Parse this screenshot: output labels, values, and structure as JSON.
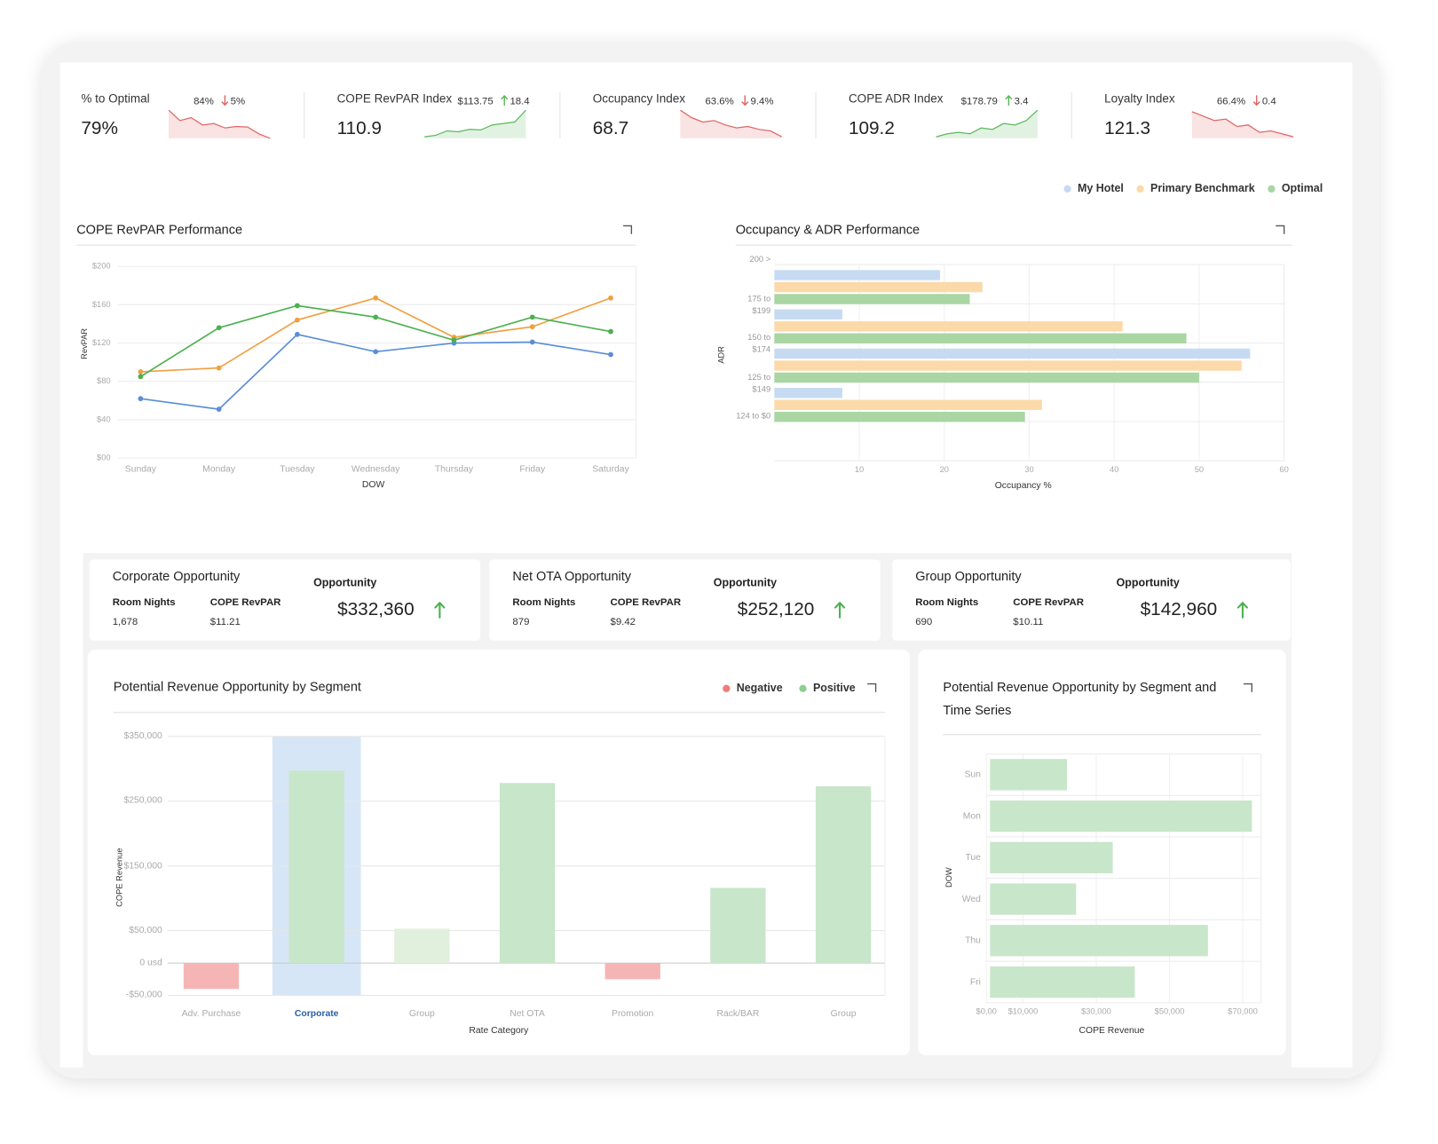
{
  "sparkline_lim": [
    0,
    100
  ],
  "kpis": [
    {
      "label": "% to Optimal",
      "value": "79%",
      "benchmark": "84%",
      "change": "5%",
      "trend": "down",
      "color": "#e06666",
      "sparkline": [
        95,
        60,
        70,
        45,
        50,
        35,
        40,
        38,
        15,
        0
      ]
    },
    {
      "label": "COPE RevPAR Index",
      "value": "110.9",
      "benchmark": "$113.75",
      "change": "18.4",
      "trend": "up",
      "color": "#5cb85c",
      "sparkline": [
        5,
        10,
        25,
        22,
        30,
        28,
        45,
        50,
        55,
        95
      ]
    },
    {
      "label": "Occupancy Index",
      "value": "68.7",
      "benchmark": "63.6%",
      "change": "9.4%",
      "trend": "down",
      "color": "#e06666",
      "sparkline": [
        95,
        70,
        55,
        60,
        45,
        35,
        40,
        30,
        25,
        5
      ]
    },
    {
      "label": "COPE ADR Index",
      "value": "109.2",
      "benchmark": "$178.79",
      "change": "3.4",
      "trend": "up",
      "color": "#5cb85c",
      "sparkline": [
        5,
        15,
        20,
        15,
        35,
        30,
        50,
        45,
        60,
        95
      ]
    },
    {
      "label": "Loyalty Index",
      "value": "121.3",
      "benchmark": "66.4%",
      "change": "0.4",
      "trend": "down",
      "color": "#e06666",
      "sparkline": [
        90,
        75,
        60,
        65,
        40,
        45,
        20,
        25,
        15,
        5
      ]
    }
  ],
  "opportunities": {
    "room_nights_label": "Room Nights",
    "revpar_label": "COPE RevPAR",
    "opportunity_label": "Opportunity",
    "arrow_color": "#4caf50",
    "cards": [
      {
        "title": "Corporate Opportunity",
        "room_nights": "1,678",
        "revpar": "$11.21",
        "opportunity": "$332,360",
        "trend": "up"
      },
      {
        "title": "Net OTA Opportunity",
        "room_nights": "879",
        "revpar": "$9.42",
        "opportunity": "$252,120",
        "trend": "up"
      },
      {
        "title": "Group Opportunity",
        "room_nights": "690",
        "revpar": "$10.11",
        "opportunity": "$142,960",
        "trend": "up"
      }
    ]
  },
  "chart_data": [
    {
      "type": "line",
      "title": "COPE RevPAR Performance",
      "xlabel": "DOW",
      "ylabel": "RevPAR",
      "categories": [
        "Sunday",
        "Monday",
        "Tuesday",
        "Wednesday",
        "Thursday",
        "Friday",
        "Saturday"
      ],
      "series": [
        {
          "color": "#5b8ed6",
          "values": [
            62,
            51,
            129,
            111,
            120,
            121,
            108
          ]
        },
        {
          "color": "#f0a040",
          "values": [
            90,
            94,
            144,
            167,
            126,
            137,
            167
          ]
        },
        {
          "color": "#4cb050",
          "values": [
            85,
            136,
            159,
            147,
            123,
            147,
            132
          ]
        }
      ],
      "ylim": [
        0,
        200
      ],
      "yticks": [
        {
          "value": 0,
          "label": "$00"
        },
        {
          "value": 40,
          "label": "$40"
        },
        {
          "value": 80,
          "label": "$80"
        },
        {
          "value": 120,
          "label": "$120"
        },
        {
          "value": 160,
          "label": "$160"
        },
        {
          "value": 200,
          "label": "$200"
        }
      ],
      "grid": true
    },
    {
      "type": "bar",
      "orientation": "horizontal",
      "title": "Occupancy & ADR Performance",
      "xlabel": "Occupancy %",
      "ylabel": "ADR",
      "categories": [
        "200 >",
        "175 to $199",
        "150 to $174",
        "125 to $149",
        "124 to $0"
      ],
      "series": [
        {
          "name": "My Hotel",
          "color": "#c6dbf2",
          "values": [
            19.5,
            8,
            56,
            8,
            null
          ]
        },
        {
          "name": "Primary Benchmark",
          "color": "#fcd9a8",
          "values": [
            24.5,
            41,
            55,
            31.5,
            null
          ]
        },
        {
          "name": "Optimal",
          "color": "#a9d6a3",
          "values": [
            23,
            48.5,
            50,
            29.5,
            null
          ]
        }
      ],
      "xlim": [
        0,
        60
      ],
      "xticks": [
        10,
        20,
        30,
        40,
        50,
        60
      ],
      "legend": "top-right",
      "grid": true
    },
    {
      "type": "bar",
      "orientation": "vertical",
      "title": "Potential Revenue Opportunity by Segment",
      "xlabel": "Rate Category",
      "ylabel": "COPE Revenue",
      "categories": [
        "Adv. Purchase",
        "Corporate",
        "Group",
        "Net OTA",
        "Promotion",
        "Rack/BAR",
        "Group"
      ],
      "values": [
        -40000,
        297000,
        53000,
        278000,
        -25000,
        116000,
        273000
      ],
      "colors": [
        "#f5b5b5",
        "#c8e6c9",
        "#e0f0dd",
        "#c8e6c9",
        "#f5b5b5",
        "#c8e6c9",
        "#c8e6c9"
      ],
      "highlight_index": 1,
      "highlight_color": "#d6e6f6",
      "legend_items": [
        {
          "name": "Negative",
          "color": "#ef7b7b"
        },
        {
          "name": "Positive",
          "color": "#8fce8f"
        }
      ],
      "ylim": [
        -50000,
        350000
      ],
      "yticks": [
        {
          "value": -50000,
          "label": "-$50,000"
        },
        {
          "value": 0,
          "label": "0 usd"
        },
        {
          "value": 50000,
          "label": "$50,000"
        },
        {
          "value": 150000,
          "label": "$150,000"
        },
        {
          "value": 250000,
          "label": "$250,000"
        },
        {
          "value": 350000,
          "label": "$350,000"
        }
      ],
      "grid": true
    },
    {
      "type": "bar",
      "orientation": "horizontal",
      "title": "Potential Revenue Opportunity by Segment and Time Series",
      "xlabel": "COPE Revenue",
      "ylabel": "DOW",
      "categories": [
        "Sun",
        "Mon",
        "Tue",
        "Wed",
        "Thu",
        "Fri"
      ],
      "values": [
        21000,
        71500,
        33500,
        23500,
        59500,
        39500
      ],
      "color": "#c8e6c9",
      "xlim": [
        0,
        75000
      ],
      "xticks": [
        {
          "value": 0,
          "label": "$0,00"
        },
        {
          "value": 10000,
          "label": "$10,000"
        },
        {
          "value": 30000,
          "label": "$30,000"
        },
        {
          "value": 50000,
          "label": "$50,000"
        },
        {
          "value": 70000,
          "label": "$70,000"
        }
      ],
      "grid": true
    }
  ]
}
